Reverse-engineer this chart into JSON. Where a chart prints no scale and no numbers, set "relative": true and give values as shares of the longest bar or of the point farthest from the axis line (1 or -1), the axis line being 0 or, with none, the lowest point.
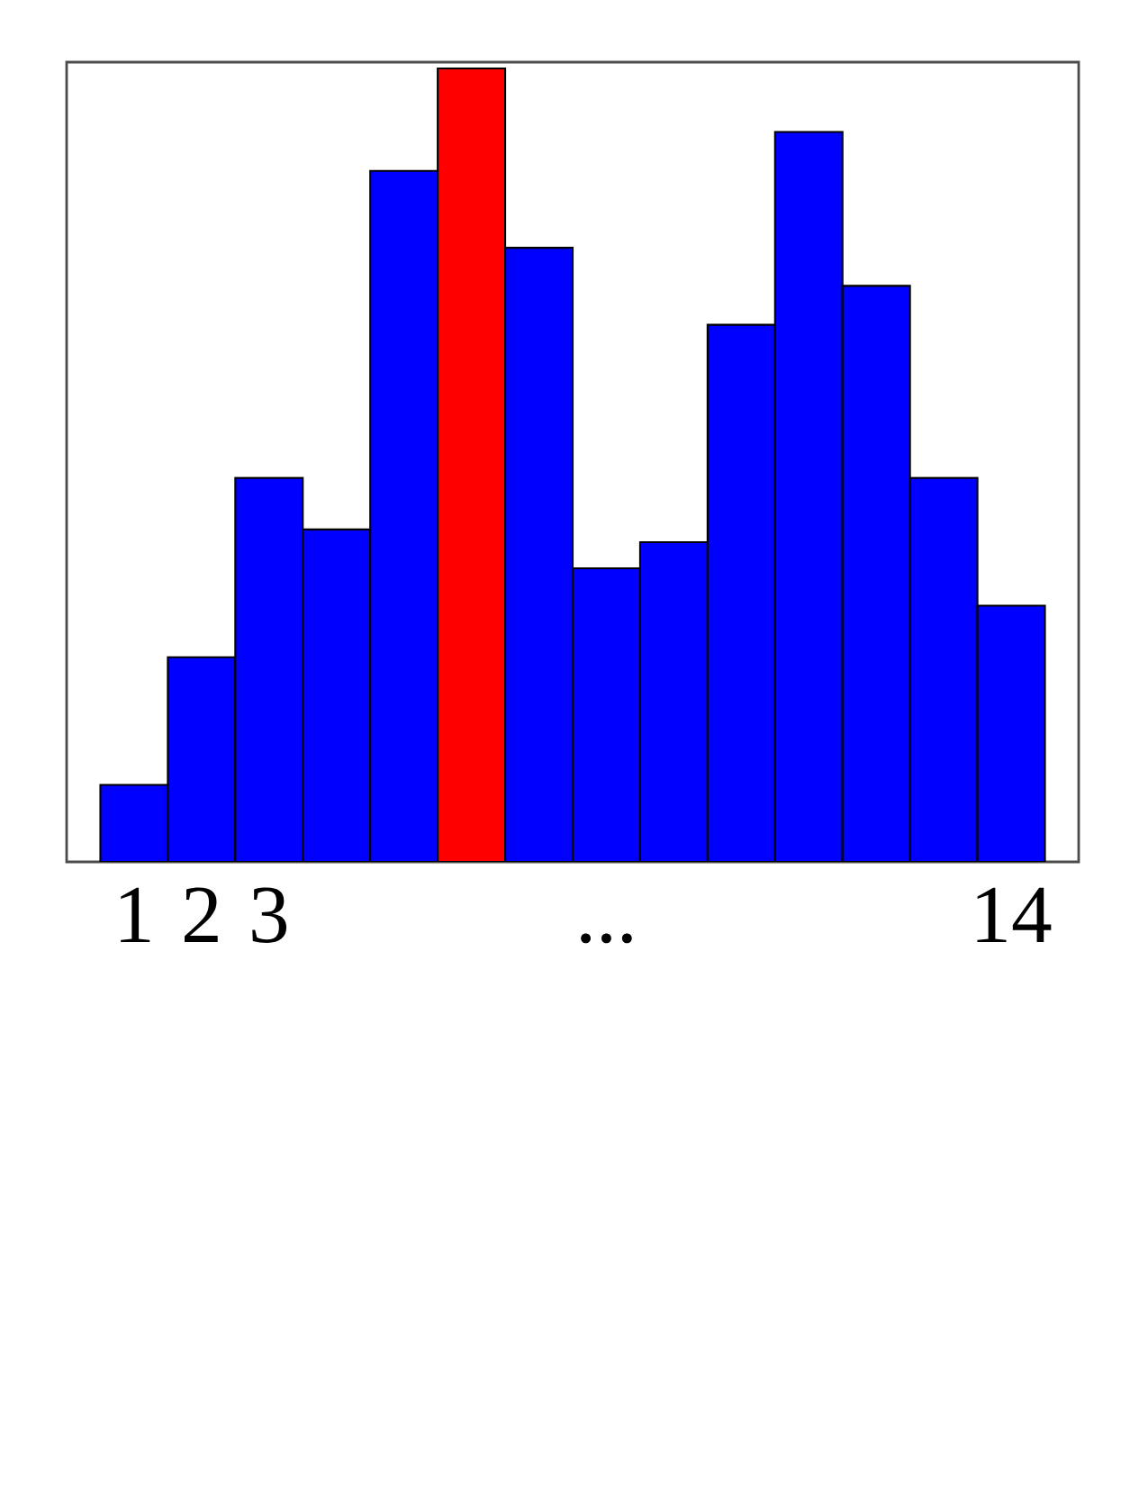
{
  "chart_data": {
    "type": "bar",
    "relative": true,
    "categories": [
      "1",
      "2",
      "3",
      null,
      null,
      null,
      null,
      "...",
      null,
      null,
      null,
      null,
      null,
      "14"
    ],
    "values": [
      0.097,
      0.258,
      0.484,
      0.419,
      0.871,
      1,
      0.774,
      0.37,
      0.403,
      0.677,
      0.92,
      0.726,
      0.484,
      0.323
    ],
    "colors": [
      "#0000ff",
      "#0000ff",
      "#0000ff",
      "#0000ff",
      "#0000ff",
      "#ff0000",
      "#0000ff",
      "#0000ff",
      "#0000ff",
      "#0000ff",
      "#0000ff",
      "#0000ff",
      "#0000ff",
      "#0000ff"
    ]
  }
}
